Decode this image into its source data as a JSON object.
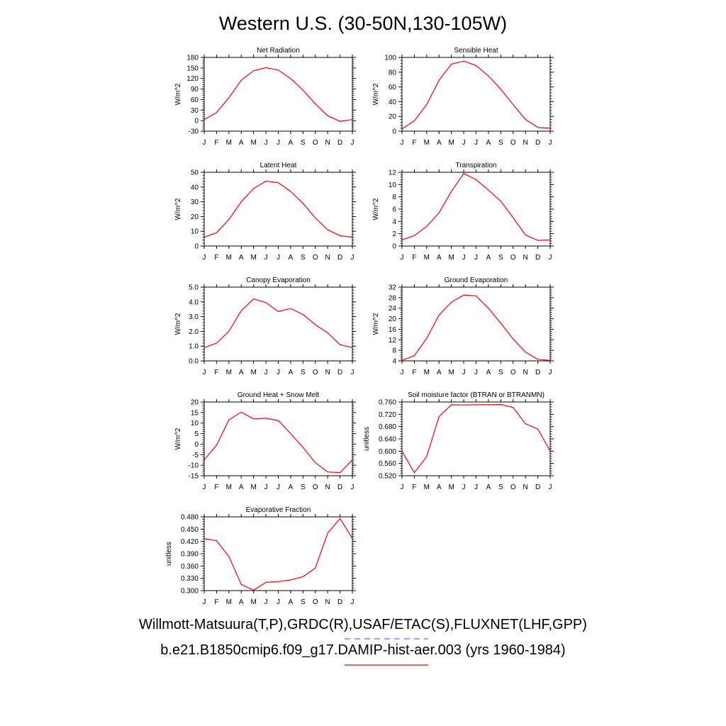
{
  "title": "Western U.S. (30-50N,130-105W)",
  "months": [
    "J",
    "F",
    "M",
    "A",
    "M",
    "J",
    "J",
    "A",
    "S",
    "O",
    "N",
    "D",
    "J"
  ],
  "legend": {
    "observations": "Willmott-Matsuura(T,P),GRDC(R),USAF/ETAC(S),FLUXNET(LHF,GPP)",
    "observations_color": "#6666ff",
    "model": "b.e21.B1850cmip6.f09_g17.DAMIP-hist-aer.003 (yrs 1960-1984)",
    "model_color": "#ff0000"
  },
  "chart_data": [
    {
      "type": "line",
      "title": "Net Radiation",
      "ylabel": "W/m^2",
      "ylim": [
        -30,
        180
      ],
      "yticks": [
        "180",
        "150",
        "120",
        "90",
        "60",
        "30",
        "0",
        "-30"
      ],
      "tick_values": [
        180,
        150,
        120,
        90,
        60,
        30,
        0,
        -30
      ],
      "series": [
        {
          "values": [
            3,
            23,
            65,
            115,
            142,
            151,
            144,
            120,
            87,
            48,
            14,
            -2,
            3
          ]
        }
      ]
    },
    {
      "type": "line",
      "title": "Sensible Heat",
      "ylabel": "W/m^2",
      "ylim": [
        0,
        100
      ],
      "yticks": [
        "100",
        "80",
        "60",
        "40",
        "20",
        "0"
      ],
      "tick_values": [
        100,
        80,
        60,
        40,
        20,
        0
      ],
      "series": [
        {
          "values": [
            3,
            14,
            36,
            69,
            91,
            95,
            89,
            75,
            57,
            36,
            16,
            5,
            4
          ]
        }
      ]
    },
    {
      "type": "line",
      "title": "Latent Heat",
      "ylabel": "W/m^2",
      "ylim": [
        0,
        50
      ],
      "yticks": [
        "50",
        "40",
        "30",
        "20",
        "10",
        "0"
      ],
      "tick_values": [
        50,
        40,
        30,
        20,
        10,
        0
      ],
      "series": [
        {
          "values": [
            6,
            9,
            18,
            30,
            39,
            44,
            43,
            37,
            29,
            19,
            11,
            7,
            6
          ]
        }
      ]
    },
    {
      "type": "line",
      "title": "Transpiration",
      "ylabel": "W/m^2",
      "ylim": [
        0,
        12
      ],
      "yticks": [
        "12",
        "10",
        "8",
        "6",
        "4",
        "2",
        "0"
      ],
      "tick_values": [
        12,
        10,
        8,
        6,
        4,
        2,
        0
      ],
      "series": [
        {
          "values": [
            1,
            1.7,
            3.2,
            5.4,
            8.9,
            11.8,
            10.8,
            9.1,
            7.3,
            4.6,
            1.8,
            0.9,
            1
          ]
        }
      ]
    },
    {
      "type": "line",
      "title": "Canopy Evaporation",
      "ylabel": "W/m^2",
      "ylim": [
        0,
        5
      ],
      "yticks": [
        "5.0",
        "4.0",
        "3.0",
        "2.0",
        "1.0",
        "0.0"
      ],
      "tick_values": [
        5,
        4,
        3,
        2,
        1,
        0
      ],
      "series": [
        {
          "values": [
            0.9,
            1.2,
            2.0,
            3.4,
            4.2,
            3.95,
            3.35,
            3.55,
            3.15,
            2.45,
            1.9,
            1.1,
            0.9
          ]
        }
      ]
    },
    {
      "type": "line",
      "title": "Ground Evaporation",
      "ylabel": "W/m^2",
      "ylim": [
        4,
        32
      ],
      "yticks": [
        "32",
        "28",
        "24",
        "20",
        "16",
        "12",
        "8",
        "4"
      ],
      "tick_values": [
        32,
        28,
        24,
        20,
        16,
        12,
        8,
        4
      ],
      "series": [
        {
          "values": [
            4.2,
            6.0,
            12.5,
            21.4,
            26.3,
            29,
            28.7,
            24,
            18.3,
            12.3,
            7.3,
            4.6,
            4.2
          ]
        }
      ]
    },
    {
      "type": "line",
      "title": "Ground Heat + Snow Melt",
      "ylabel": "W/m^2",
      "ylim": [
        -15,
        20
      ],
      "yticks": [
        "20",
        "15",
        "10",
        "5",
        "0",
        "-5",
        "-10",
        "-15"
      ],
      "tick_values": [
        20,
        15,
        10,
        5,
        0,
        -5,
        -10,
        -15
      ],
      "series": [
        {
          "values": [
            -7.5,
            -0.5,
            11.5,
            15.2,
            12,
            12.3,
            11.2,
            5,
            -1.5,
            -8.8,
            -13.2,
            -13.5,
            -7.5
          ]
        }
      ]
    },
    {
      "type": "line",
      "title": "Soil moisture factor (BTRAN or BTRANMN)",
      "ylabel": "unitless",
      "ylim": [
        0.52,
        0.76
      ],
      "yticks": [
        "0.760",
        "0.720",
        "0.680",
        "0.640",
        "0.600",
        "0.560",
        "0.520"
      ],
      "tick_values": [
        0.76,
        0.72,
        0.68,
        0.64,
        0.6,
        0.56,
        0.52
      ],
      "series": [
        {
          "values": [
            0.6,
            0.53,
            0.582,
            0.713,
            0.751,
            0.75,
            0.751,
            0.751,
            0.752,
            0.742,
            0.689,
            0.672,
            0.6
          ]
        }
      ]
    },
    {
      "type": "line",
      "title": "Evaporative Fraction",
      "ylabel": "unitless",
      "ylim": [
        0.3,
        0.48
      ],
      "yticks": [
        "0.480",
        "0.450",
        "0.420",
        "0.390",
        "0.360",
        "0.330",
        "0.300"
      ],
      "tick_values": [
        0.48,
        0.45,
        0.42,
        0.39,
        0.36,
        0.33,
        0.3
      ],
      "series": [
        {
          "values": [
            0.427,
            0.422,
            0.383,
            0.315,
            0.301,
            0.32,
            0.322,
            0.326,
            0.334,
            0.355,
            0.44,
            0.476,
            0.427
          ]
        }
      ]
    }
  ]
}
